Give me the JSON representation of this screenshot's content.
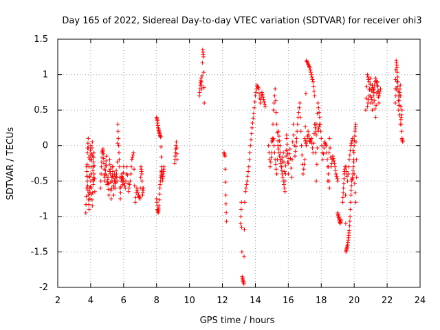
{
  "chart_data": {
    "type": "scatter",
    "title": "Day 165 of 2022, Sidereal Day-to-day VTEC variation (SDTVAR) for receiver ohi3",
    "xlabel": "GPS time / hours",
    "ylabel": "SDTVAR / TECUs",
    "xlim": [
      2,
      24
    ],
    "ylim": [
      -2,
      1.5
    ],
    "xticks": [
      2,
      4,
      6,
      8,
      10,
      12,
      14,
      16,
      18,
      20,
      22,
      24
    ],
    "xtick_labels": [
      "2",
      "4",
      "6",
      "8",
      "10",
      "12",
      "14",
      "16",
      "18",
      "20",
      "22",
      "24"
    ],
    "yticks": [
      -2,
      -1.5,
      -1,
      -0.5,
      0,
      0.5,
      1,
      1.5
    ],
    "ytick_labels": [
      "-2",
      "-1.5",
      "-1",
      "-0.5",
      "0",
      "0.5",
      "1",
      "1.5"
    ],
    "grid": true,
    "marker": "+",
    "color": "#ff0000",
    "series": [
      {
        "name": "SDTVAR",
        "segments": [
          {
            "x": [
              3.7,
              3.75,
              3.8,
              3.85,
              3.9,
              3.95,
              4.0,
              4.05,
              4.1,
              4.15,
              4.2
            ],
            "y": [
              -0.95,
              -0.6,
              -0.1,
              0.1,
              -0.3,
              -0.75,
              -0.5,
              -0.2,
              0.05,
              -0.55,
              -0.4
            ]
          },
          {
            "x": [
              3.75,
              3.8,
              3.85,
              3.9,
              3.95,
              4.0,
              4.05,
              4.1,
              4.15,
              4.2,
              4.25
            ],
            "y": [
              -0.3,
              -0.5,
              -0.7,
              -0.9,
              -0.2,
              0.0,
              -0.6,
              -0.85,
              -0.3,
              -0.1,
              -0.65
            ]
          },
          {
            "x": [
              4.6,
              4.65,
              4.7,
              4.75,
              4.8,
              4.85,
              4.9,
              4.95,
              5.0,
              5.05,
              5.1,
              5.15,
              5.2,
              5.25,
              5.3
            ],
            "y": [
              -0.6,
              -0.3,
              -0.1,
              -0.05,
              -0.25,
              -0.5,
              -0.35,
              -0.15,
              -0.55,
              -0.45,
              -0.7,
              -0.2,
              -0.4,
              -0.75,
              -0.3
            ]
          },
          {
            "x": [
              5.3,
              5.35,
              5.4,
              5.45,
              5.5,
              5.55,
              5.6,
              5.65,
              5.7,
              5.75,
              5.8,
              5.85,
              5.9,
              5.95,
              6.0
            ],
            "y": [
              -0.5,
              -0.3,
              -0.7,
              -0.4,
              -0.6,
              -0.35,
              -0.5,
              0.3,
              0.0,
              -0.3,
              -0.75,
              -0.5,
              -0.4,
              -0.55,
              -0.3
            ]
          },
          {
            "x": [
              6.0,
              6.1,
              6.2,
              6.3,
              6.4,
              6.5,
              6.6,
              6.7,
              6.8,
              6.9,
              7.0,
              7.05,
              7.1,
              7.15,
              7.2
            ],
            "y": [
              -0.5,
              -0.6,
              -0.3,
              -0.65,
              -0.5,
              -0.2,
              -0.1,
              -0.8,
              -0.6,
              -0.7,
              -0.75,
              -0.3,
              -0.4,
              -0.7,
              -0.6
            ]
          },
          {
            "x": [
              8.0,
              8.05,
              8.1,
              8.15,
              8.2,
              8.25,
              8.3,
              8.35,
              8.4,
              8.45
            ],
            "y": [
              0.4,
              0.35,
              0.25,
              0.2,
              0.15,
              0.12,
              -0.3,
              -0.5,
              -0.4,
              -0.3
            ]
          },
          {
            "x": [
              8.0,
              8.05,
              8.1,
              8.15,
              8.2,
              8.25,
              8.3
            ],
            "y": [
              -0.75,
              -0.9,
              -0.95,
              -0.85,
              -0.6,
              -0.45,
              -0.35
            ]
          },
          {
            "x": [
              9.1,
              9.15,
              9.2,
              9.25
            ],
            "y": [
              -0.25,
              -0.1,
              0.05,
              -0.2
            ]
          },
          {
            "x": [
              10.6,
              10.65,
              10.7,
              10.75,
              10.8,
              10.85,
              10.9
            ],
            "y": [
              0.7,
              0.85,
              0.95,
              0.8,
              1.35,
              1.25,
              0.6
            ]
          },
          {
            "x": [
              12.1,
              12.15,
              12.2,
              12.25
            ],
            "y": [
              -0.1,
              -0.15,
              -0.7,
              -1.07
            ]
          },
          {
            "x": [
              13.1,
              13.15,
              13.2,
              13.25,
              13.3,
              13.35
            ],
            "y": [
              -1.1,
              -0.8,
              -1.85,
              -1.9,
              -1.95,
              -0.8
            ]
          },
          {
            "x": [
              13.4,
              13.5,
              13.6,
              13.7,
              13.8,
              13.9,
              14.0,
              14.1,
              14.2,
              14.3,
              14.4,
              14.5,
              14.6
            ],
            "y": [
              -0.65,
              -0.5,
              -0.3,
              0.0,
              0.25,
              0.45,
              0.7,
              0.85,
              0.8,
              0.6,
              0.75,
              0.65,
              0.55
            ]
          },
          {
            "x": [
              14.8,
              14.9,
              15.0,
              15.1,
              15.2,
              15.3,
              15.4,
              15.5,
              15.6,
              15.7,
              15.8,
              15.9,
              16.0
            ],
            "y": [
              0.0,
              -0.3,
              -0.1,
              0.5,
              0.8,
              0.3,
              -0.05,
              -0.2,
              -0.35,
              -0.5,
              -0.65,
              0.1,
              -0.4
            ]
          },
          {
            "x": [
              15.0,
              15.1,
              15.2,
              15.3,
              15.4,
              15.5,
              15.6,
              15.7,
              15.8,
              15.9,
              16.0,
              16.1,
              16.2,
              16.3,
              16.4,
              16.5
            ],
            "y": [
              0.05,
              0.1,
              -0.2,
              -0.4,
              0.2,
              0.0,
              -0.3,
              -0.1,
              -0.5,
              0.15,
              -0.25,
              -0.05,
              -0.45,
              0.3,
              -0.15,
              0.05
            ]
          },
          {
            "x": [
              16.5,
              16.6,
              16.7,
              16.8,
              16.9,
              17.0,
              17.1,
              17.2,
              17.3,
              17.4,
              17.5,
              17.6,
              17.7,
              17.8,
              17.9
            ],
            "y": [
              0.1,
              0.4,
              0.6,
              0.0,
              -0.4,
              -0.2,
              1.2,
              1.15,
              1.1,
              1.0,
              0.9,
              0.7,
              -0.5,
              0.2,
              0.3
            ]
          },
          {
            "x": [
              17.0,
              17.1,
              17.2,
              17.3,
              17.4,
              17.5,
              17.6,
              17.7,
              17.8,
              17.9,
              18.0,
              18.1,
              18.2,
              18.3,
              18.4,
              18.5
            ],
            "y": [
              0.1,
              0.0,
              0.2,
              0.05,
              0.1,
              -0.1,
              0.3,
              0.15,
              0.6,
              0.4,
              0.1,
              -0.2,
              0.05,
              0.0,
              -0.3,
              -0.6
            ]
          },
          {
            "x": [
              18.4,
              18.5,
              18.6,
              18.7,
              18.8,
              18.9,
              19.0
            ],
            "y": [
              -0.5,
              0.1,
              -0.3,
              -0.15,
              -0.25,
              -0.4,
              -0.5
            ]
          },
          {
            "x": [
              19.0,
              19.05,
              19.1,
              19.15,
              19.2
            ],
            "y": [
              -0.95,
              -1.0,
              -1.05,
              -1.1,
              -1.05
            ]
          },
          {
            "x": [
              19.3,
              19.35,
              19.4,
              19.45,
              19.5,
              19.55,
              19.6,
              19.65,
              19.7,
              19.75,
              19.8,
              19.85,
              19.9,
              19.95,
              20.0,
              20.05,
              20.1,
              20.15
            ],
            "y": [
              -0.8,
              -0.6,
              -0.4,
              -0.3,
              -1.5,
              -1.45,
              -1.4,
              -1.3,
              -1.2,
              -1.0,
              -0.7,
              -0.5,
              -0.45,
              -0.3,
              0.0,
              0.2,
              0.3,
              -0.45
            ]
          },
          {
            "x": [
              19.5,
              19.6,
              19.7,
              19.8,
              19.9,
              20.0,
              20.1
            ],
            "y": [
              -0.3,
              -0.5,
              -0.2,
              0.0,
              0.1,
              -0.4,
              -0.8
            ]
          },
          {
            "x": [
              20.7,
              20.8,
              20.9,
              21.0,
              21.1,
              21.2,
              21.3,
              21.4,
              21.5,
              21.6
            ],
            "y": [
              0.5,
              1.0,
              0.9,
              0.6,
              0.85,
              0.75,
              0.4,
              0.9,
              0.7,
              0.8
            ]
          },
          {
            "x": [
              20.8,
              20.9,
              21.0,
              21.1,
              21.2,
              21.3,
              21.4,
              21.5
            ],
            "y": [
              0.55,
              0.7,
              0.95,
              0.5,
              0.8,
              0.95,
              0.85,
              0.6
            ]
          },
          {
            "x": [
              22.5,
              22.55,
              22.6,
              22.65,
              22.7,
              22.75,
              22.8,
              22.85,
              22.9,
              22.95
            ],
            "y": [
              0.8,
              1.2,
              1.1,
              0.9,
              0.5,
              0.7,
              0.85,
              0.4,
              0.1,
              0.05
            ]
          },
          {
            "x": [
              22.5,
              22.6,
              22.7,
              22.8,
              22.9
            ],
            "y": [
              0.6,
              0.9,
              0.7,
              0.3,
              0.5
            ]
          }
        ]
      }
    ]
  }
}
